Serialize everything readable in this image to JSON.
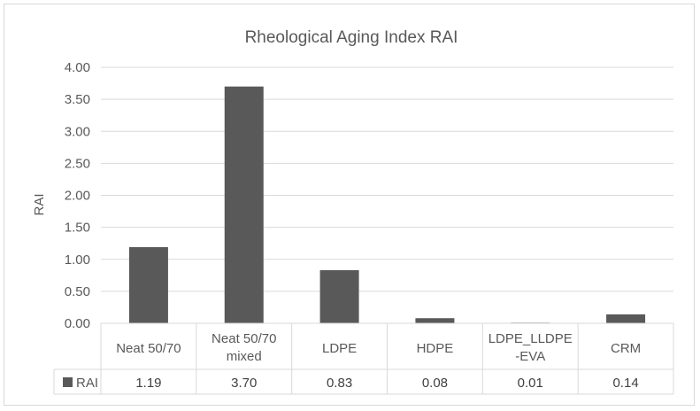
{
  "chart_data": {
    "type": "bar",
    "title": "Rheological Aging Index RAI",
    "ylabel": "RAI",
    "xlabel": "",
    "ylim": [
      0,
      4
    ],
    "yticks": [
      "0.00",
      "0.50",
      "1.00",
      "1.50",
      "2.00",
      "2.50",
      "3.00",
      "3.50",
      "4.00"
    ],
    "categories": [
      [
        "Neat 50/70"
      ],
      [
        "Neat 50/70",
        "mixed"
      ],
      [
        "LDPE"
      ],
      [
        "HDPE"
      ],
      [
        "LDPE_LLDPE",
        "-EVA"
      ],
      [
        "CRM"
      ]
    ],
    "series": [
      {
        "name": "RAI",
        "color": "#595959",
        "values": [
          1.19,
          3.7,
          0.83,
          0.08,
          0.01,
          0.14
        ],
        "labels": [
          "1.19",
          "3.70",
          "0.83",
          "0.08",
          "0.01",
          "0.14"
        ]
      }
    ],
    "grid": true,
    "legend": "data-table"
  }
}
